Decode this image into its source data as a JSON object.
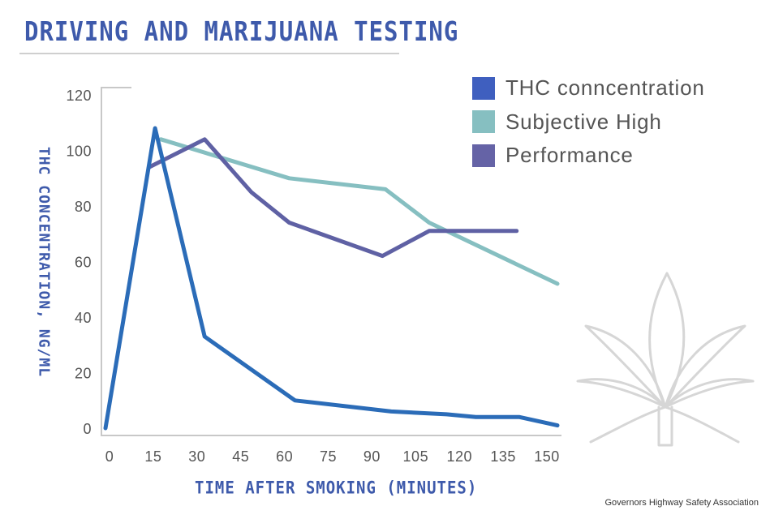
{
  "title": "DRIVING AND MARIJUANA TESTING",
  "source": "Governors Highway Safety Association",
  "icon": "cannabis-leaf-icon",
  "chart_data": {
    "type": "line",
    "title": "DRIVING AND MARIJUANA TESTING",
    "xlabel": "TIME AFTER SMOKING (MINUTES)",
    "ylabel": "THC CONCENTRATION, NG/ML",
    "xlim": [
      0,
      155
    ],
    "ylim": [
      0,
      120
    ],
    "xticks": [
      0,
      15,
      30,
      45,
      60,
      75,
      90,
      105,
      120,
      135,
      150
    ],
    "yticks": [
      0,
      20,
      40,
      60,
      80,
      100,
      120
    ],
    "grid": false,
    "legend_position": "top-right",
    "series": [
      {
        "name": "THC conncentration",
        "legend_color": "#3f5fbf",
        "line_color": "#2b6cb8",
        "points": [
          [
            0,
            0
          ],
          [
            17,
            108
          ],
          [
            34,
            33
          ],
          [
            65,
            10
          ],
          [
            98,
            6
          ],
          [
            117,
            5
          ],
          [
            127,
            4
          ],
          [
            142,
            4
          ],
          [
            155,
            1
          ]
        ]
      },
      {
        "name": "Subjective High",
        "legend_color": "#86bfc1",
        "line_color": "#86bfc1",
        "points": [
          [
            19,
            104
          ],
          [
            63,
            90
          ],
          [
            96,
            86
          ],
          [
            111,
            74
          ],
          [
            155,
            52
          ]
        ]
      },
      {
        "name": "Performance",
        "legend_color": "#6563a6",
        "line_color": "#5f61a4",
        "points": [
          [
            15,
            94
          ],
          [
            34,
            104
          ],
          [
            50,
            85
          ],
          [
            63,
            74
          ],
          [
            95,
            62
          ],
          [
            111,
            71
          ],
          [
            141,
            71
          ]
        ]
      }
    ]
  }
}
